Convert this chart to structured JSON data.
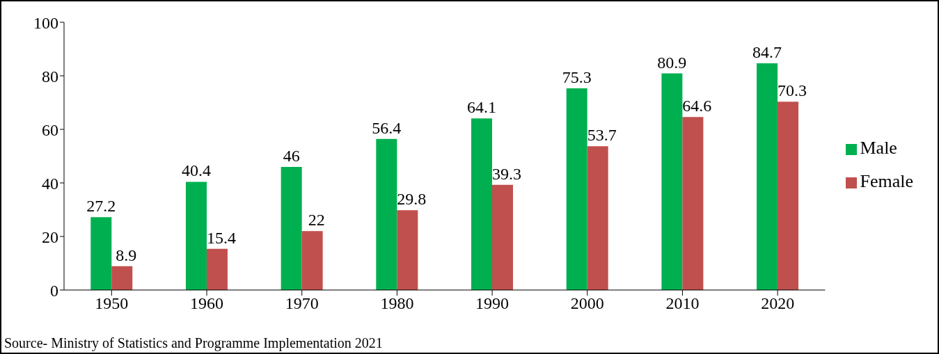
{
  "chart_data": {
    "type": "bar",
    "categories": [
      "1950",
      "1960",
      "1970",
      "1980",
      "1990",
      "2000",
      "2010",
      "2020"
    ],
    "series": [
      {
        "name": "Male",
        "color": "#00b050",
        "values": [
          27.2,
          40.4,
          46,
          56.4,
          64.1,
          75.3,
          80.9,
          84.7
        ]
      },
      {
        "name": "Female",
        "color": "#c0504d",
        "values": [
          8.9,
          15.4,
          22,
          29.8,
          39.3,
          53.7,
          64.6,
          70.3
        ]
      }
    ],
    "ylim": [
      0,
      100
    ],
    "yticks": [
      0,
      20,
      40,
      60,
      80,
      100
    ],
    "grid": false,
    "legend": "right",
    "data_labels": true,
    "annotations": [
      "Source- Ministry of Statistics and Programme Implementation 2021"
    ]
  }
}
